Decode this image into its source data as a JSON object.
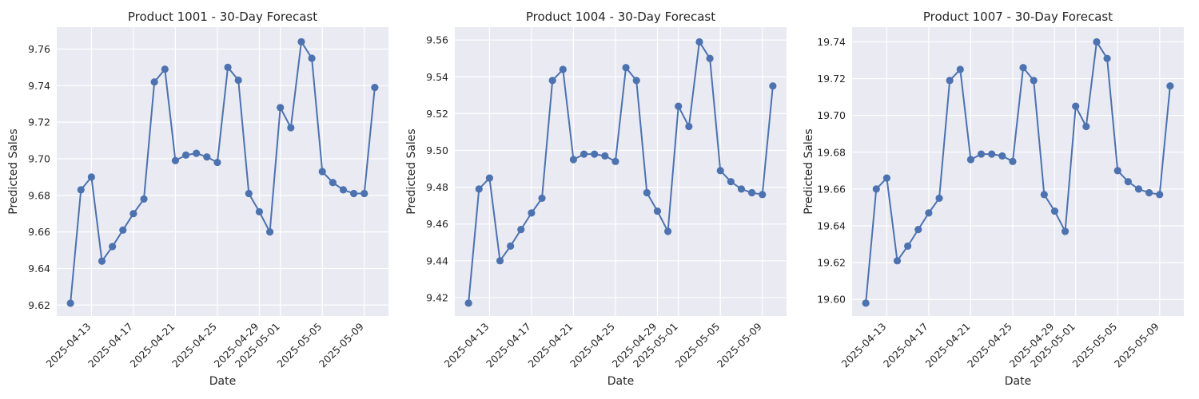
{
  "colors": {
    "background": "#EAEAF2",
    "grid": "#FFFFFF",
    "series": "#4C72B0",
    "text": "#262626"
  },
  "chart_data": [
    {
      "type": "line",
      "title": "Product 1001 - 30-Day Forecast",
      "xlabel": "Date",
      "ylabel": "Predicted Sales",
      "grid": true,
      "x": [
        "2025-04-11",
        "2025-04-12",
        "2025-04-13",
        "2025-04-14",
        "2025-04-15",
        "2025-04-16",
        "2025-04-17",
        "2025-04-18",
        "2025-04-19",
        "2025-04-20",
        "2025-04-21",
        "2025-04-22",
        "2025-04-23",
        "2025-04-24",
        "2025-04-25",
        "2025-04-26",
        "2025-04-27",
        "2025-04-28",
        "2025-04-29",
        "2025-04-30",
        "2025-05-01",
        "2025-05-02",
        "2025-05-03",
        "2025-05-04",
        "2025-05-05",
        "2025-05-06",
        "2025-05-07",
        "2025-05-08",
        "2025-05-09",
        "2025-05-10"
      ],
      "values": [
        9.621,
        9.683,
        9.69,
        9.644,
        9.652,
        9.661,
        9.67,
        9.678,
        9.742,
        9.749,
        9.699,
        9.702,
        9.703,
        9.701,
        9.698,
        9.75,
        9.743,
        9.681,
        9.671,
        9.66,
        9.728,
        9.717,
        9.764,
        9.755,
        9.693,
        9.687,
        9.683,
        9.681,
        9.681,
        9.739
      ],
      "xticks": [
        "2025-04-13",
        "2025-04-17",
        "2025-04-21",
        "2025-04-25",
        "2025-04-29",
        "2025-05-01",
        "2025-05-05",
        "2025-05-09"
      ],
      "yticks": [
        "9.62",
        "9.64",
        "9.66",
        "9.68",
        "9.70",
        "9.72",
        "9.74",
        "9.76"
      ],
      "ylim": [
        9.614,
        9.772
      ]
    },
    {
      "type": "line",
      "title": "Product 1004 - 30-Day Forecast",
      "xlabel": "Date",
      "ylabel": "Predicted Sales",
      "grid": true,
      "x": [
        "2025-04-11",
        "2025-04-12",
        "2025-04-13",
        "2025-04-14",
        "2025-04-15",
        "2025-04-16",
        "2025-04-17",
        "2025-04-18",
        "2025-04-19",
        "2025-04-20",
        "2025-04-21",
        "2025-04-22",
        "2025-04-23",
        "2025-04-24",
        "2025-04-25",
        "2025-04-26",
        "2025-04-27",
        "2025-04-28",
        "2025-04-29",
        "2025-04-30",
        "2025-05-01",
        "2025-05-02",
        "2025-05-03",
        "2025-05-04",
        "2025-05-05",
        "2025-05-06",
        "2025-05-07",
        "2025-05-08",
        "2025-05-09",
        "2025-05-10"
      ],
      "values": [
        9.417,
        9.479,
        9.485,
        9.44,
        9.448,
        9.457,
        9.466,
        9.474,
        9.538,
        9.544,
        9.495,
        9.498,
        9.498,
        9.497,
        9.494,
        9.545,
        9.538,
        9.477,
        9.467,
        9.456,
        9.524,
        9.513,
        9.559,
        9.55,
        9.489,
        9.483,
        9.479,
        9.477,
        9.476,
        9.535
      ],
      "xticks": [
        "2025-04-13",
        "2025-04-17",
        "2025-04-21",
        "2025-04-25",
        "2025-04-29",
        "2025-05-01",
        "2025-05-05",
        "2025-05-09"
      ],
      "yticks": [
        "9.42",
        "9.44",
        "9.46",
        "9.48",
        "9.50",
        "9.52",
        "9.54",
        "9.56"
      ],
      "ylim": [
        9.41,
        9.567
      ]
    },
    {
      "type": "line",
      "title": "Product 1007 - 30-Day Forecast",
      "xlabel": "Date",
      "ylabel": "Predicted Sales",
      "grid": true,
      "x": [
        "2025-04-11",
        "2025-04-12",
        "2025-04-13",
        "2025-04-14",
        "2025-04-15",
        "2025-04-16",
        "2025-04-17",
        "2025-04-18",
        "2025-04-19",
        "2025-04-20",
        "2025-04-21",
        "2025-04-22",
        "2025-04-23",
        "2025-04-24",
        "2025-04-25",
        "2025-04-26",
        "2025-04-27",
        "2025-04-28",
        "2025-04-29",
        "2025-04-30",
        "2025-05-01",
        "2025-05-02",
        "2025-05-03",
        "2025-05-04",
        "2025-05-05",
        "2025-05-06",
        "2025-05-07",
        "2025-05-08",
        "2025-05-09",
        "2025-05-10"
      ],
      "values": [
        19.598,
        19.66,
        19.666,
        19.621,
        19.629,
        19.638,
        19.647,
        19.655,
        19.719,
        19.725,
        19.676,
        19.679,
        19.679,
        19.678,
        19.675,
        19.726,
        19.719,
        19.657,
        19.648,
        19.637,
        19.705,
        19.694,
        19.74,
        19.731,
        19.67,
        19.664,
        19.66,
        19.658,
        19.657,
        19.716
      ],
      "xticks": [
        "2025-04-13",
        "2025-04-17",
        "2025-04-21",
        "2025-04-25",
        "2025-04-29",
        "2025-05-01",
        "2025-05-05",
        "2025-05-09"
      ],
      "yticks": [
        "19.60",
        "19.62",
        "19.64",
        "19.66",
        "19.68",
        "19.70",
        "19.72",
        "19.74"
      ],
      "ylim": [
        19.591,
        19.748
      ]
    }
  ]
}
